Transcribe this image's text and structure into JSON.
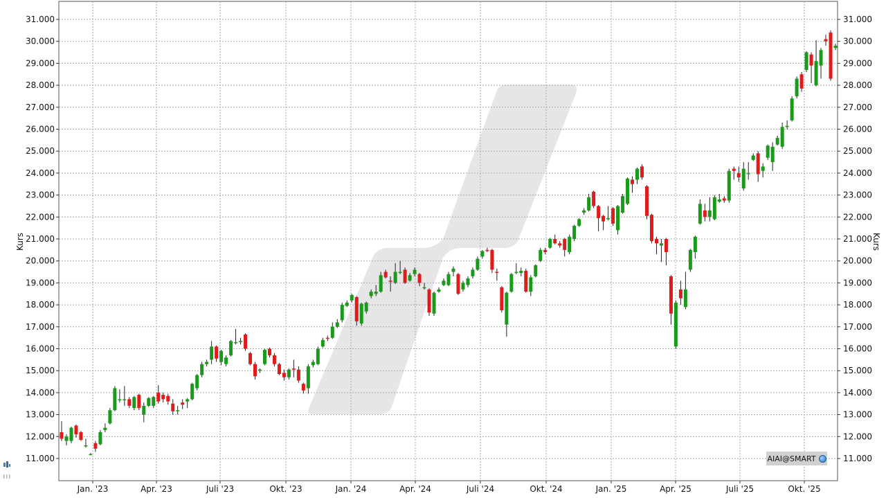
{
  "chart_data": {
    "type": "candlestick",
    "ylabel_left": "Kurs",
    "ylabel_right": "Kurs",
    "ylim": [
      10000,
      31500
    ],
    "y_ticks": [
      "11.000",
      "12.000",
      "13.000",
      "14.000",
      "15.000",
      "16.000",
      "17.000",
      "18.000",
      "19.000",
      "20.000",
      "21.000",
      "22.000",
      "23.000",
      "24.000",
      "25.000",
      "26.000",
      "27.000",
      "28.000",
      "29.000",
      "30.000",
      "31.000"
    ],
    "x_ticks": [
      "Jan. '23",
      "Apr. '23",
      "Juli '23",
      "Okt. '23",
      "Jan. '24",
      "Apr. '24",
      "Juli '24",
      "Okt. '24",
      "Jan. '25",
      "Apr. '25",
      "Juli '25",
      "Okt. '25"
    ],
    "grid": true,
    "candles": [
      {
        "o": 12200,
        "c": 11900,
        "h": 12700,
        "l": 11800
      },
      {
        "o": 11800,
        "c": 12000,
        "h": 12100,
        "l": 11600
      },
      {
        "o": 11800,
        "c": 12400,
        "h": 12450,
        "l": 11700
      },
      {
        "o": 12500,
        "c": 12100,
        "h": 12550,
        "l": 11950
      },
      {
        "o": 12200,
        "c": 11850,
        "h": 12250,
        "l": 11800
      },
      {
        "o": 11600,
        "c": 11600,
        "h": 11900,
        "l": 11500
      },
      {
        "o": 11200,
        "c": 11200,
        "h": 11250,
        "l": 11150
      },
      {
        "o": 11700,
        "c": 11450,
        "h": 11800,
        "l": 11300
      },
      {
        "o": 11650,
        "c": 12200,
        "h": 12300,
        "l": 11600
      },
      {
        "o": 12300,
        "c": 12400,
        "h": 12600,
        "l": 12200
      },
      {
        "o": 12600,
        "c": 13200,
        "h": 13300,
        "l": 12550
      },
      {
        "o": 13200,
        "c": 14200,
        "h": 14300,
        "l": 13150
      },
      {
        "o": 13700,
        "c": 13700,
        "h": 14150,
        "l": 13550
      },
      {
        "o": 13700,
        "c": 13700,
        "h": 14300,
        "l": 13400
      },
      {
        "o": 13700,
        "c": 13400,
        "h": 13800,
        "l": 13300
      },
      {
        "o": 13300,
        "c": 13800,
        "h": 13850,
        "l": 13200
      },
      {
        "o": 13900,
        "c": 13300,
        "h": 13950,
        "l": 13200
      },
      {
        "o": 13000,
        "c": 13400,
        "h": 13550,
        "l": 12650
      },
      {
        "o": 13400,
        "c": 13750,
        "h": 13800,
        "l": 13350
      },
      {
        "o": 13400,
        "c": 13800,
        "h": 13850,
        "l": 13300
      },
      {
        "o": 14000,
        "c": 13600,
        "h": 14350,
        "l": 13500
      },
      {
        "o": 13900,
        "c": 13700,
        "h": 14000,
        "l": 13550
      },
      {
        "o": 13850,
        "c": 13600,
        "h": 13950,
        "l": 13450
      },
      {
        "o": 13500,
        "c": 13150,
        "h": 13700,
        "l": 13000
      },
      {
        "o": 13200,
        "c": 13200,
        "h": 13400,
        "l": 13000
      },
      {
        "o": 13550,
        "c": 13450,
        "h": 13700,
        "l": 13250
      },
      {
        "o": 13600,
        "c": 13700,
        "h": 13750,
        "l": 13300
      },
      {
        "o": 13700,
        "c": 14400,
        "h": 14450,
        "l": 13650
      },
      {
        "o": 14200,
        "c": 14800,
        "h": 14850,
        "l": 14100
      },
      {
        "o": 14800,
        "c": 15300,
        "h": 15400,
        "l": 14700
      },
      {
        "o": 15300,
        "c": 15400,
        "h": 15500,
        "l": 15200
      },
      {
        "o": 15500,
        "c": 16100,
        "h": 16350,
        "l": 15300
      },
      {
        "o": 16100,
        "c": 15550,
        "h": 16150,
        "l": 15400
      },
      {
        "o": 15400,
        "c": 15900,
        "h": 15950,
        "l": 15250
      },
      {
        "o": 15300,
        "c": 15600,
        "h": 15700,
        "l": 15200
      },
      {
        "o": 15700,
        "c": 16350,
        "h": 16400,
        "l": 15650
      },
      {
        "o": 16300,
        "c": 16300,
        "h": 16900,
        "l": 16200
      },
      {
        "o": 16300,
        "c": 16350,
        "h": 16500,
        "l": 16200
      },
      {
        "o": 16650,
        "c": 16000,
        "h": 16700,
        "l": 15900
      },
      {
        "o": 15800,
        "c": 15300,
        "h": 15850,
        "l": 15250
      },
      {
        "o": 15300,
        "c": 14750,
        "h": 15400,
        "l": 14600
      },
      {
        "o": 15000,
        "c": 15050,
        "h": 15100,
        "l": 14900
      },
      {
        "o": 15300,
        "c": 15950,
        "h": 16000,
        "l": 15250
      },
      {
        "o": 16000,
        "c": 15700,
        "h": 16050,
        "l": 15600
      },
      {
        "o": 15700,
        "c": 15300,
        "h": 15800,
        "l": 15200
      },
      {
        "o": 15300,
        "c": 14850,
        "h": 15350,
        "l": 14800
      },
      {
        "o": 14900,
        "c": 14700,
        "h": 15050,
        "l": 14550
      },
      {
        "o": 14700,
        "c": 15050,
        "h": 15100,
        "l": 14600
      },
      {
        "o": 15100,
        "c": 15050,
        "h": 15500,
        "l": 14700
      },
      {
        "o": 15050,
        "c": 14550,
        "h": 15200,
        "l": 14450
      },
      {
        "o": 14400,
        "c": 14100,
        "h": 14450,
        "l": 13950
      },
      {
        "o": 14200,
        "c": 15200,
        "h": 15300,
        "l": 13950
      },
      {
        "o": 15250,
        "c": 15400,
        "h": 15500,
        "l": 15150
      },
      {
        "o": 15300,
        "c": 16000,
        "h": 16100,
        "l": 15250
      },
      {
        "o": 16100,
        "c": 16400,
        "h": 16500,
        "l": 16050
      },
      {
        "o": 16500,
        "c": 16450,
        "h": 16600,
        "l": 16350
      },
      {
        "o": 16500,
        "c": 17000,
        "h": 17200,
        "l": 16450
      },
      {
        "o": 17000,
        "c": 17200,
        "h": 17350,
        "l": 16950
      },
      {
        "o": 17300,
        "c": 18000,
        "h": 18100,
        "l": 17200
      },
      {
        "o": 17950,
        "c": 18100,
        "h": 18200,
        "l": 17900
      },
      {
        "o": 18200,
        "c": 18450,
        "h": 18500,
        "l": 18100
      },
      {
        "o": 18350,
        "c": 17250,
        "h": 18400,
        "l": 17050
      },
      {
        "o": 17150,
        "c": 18050,
        "h": 18100,
        "l": 17050
      },
      {
        "o": 17700,
        "c": 18100,
        "h": 18150,
        "l": 17600
      },
      {
        "o": 18400,
        "c": 18600,
        "h": 18700,
        "l": 18300
      },
      {
        "o": 18500,
        "c": 18600,
        "h": 18900,
        "l": 18400
      },
      {
        "o": 18600,
        "c": 19350,
        "h": 19500,
        "l": 18550
      },
      {
        "o": 19500,
        "c": 19250,
        "h": 19600,
        "l": 19200
      },
      {
        "o": 19100,
        "c": 19050,
        "h": 19300,
        "l": 18600
      },
      {
        "o": 19000,
        "c": 19500,
        "h": 19900,
        "l": 18950
      },
      {
        "o": 19500,
        "c": 19500,
        "h": 20000,
        "l": 19400
      },
      {
        "o": 19600,
        "c": 19000,
        "h": 19700,
        "l": 18950
      },
      {
        "o": 19100,
        "c": 19350,
        "h": 19450,
        "l": 19050
      },
      {
        "o": 19400,
        "c": 19600,
        "h": 19700,
        "l": 19300
      },
      {
        "o": 19400,
        "c": 19000,
        "h": 19450,
        "l": 18850
      },
      {
        "o": 18800,
        "c": 18800,
        "h": 19000,
        "l": 18700
      },
      {
        "o": 18700,
        "c": 17650,
        "h": 18750,
        "l": 17500
      },
      {
        "o": 17600,
        "c": 18550,
        "h": 18600,
        "l": 17500
      },
      {
        "o": 18600,
        "c": 18700,
        "h": 18800,
        "l": 18550
      },
      {
        "o": 18900,
        "c": 19100,
        "h": 19200,
        "l": 18850
      },
      {
        "o": 18900,
        "c": 19400,
        "h": 19500,
        "l": 18850
      },
      {
        "o": 19500,
        "c": 19650,
        "h": 19750,
        "l": 19300
      },
      {
        "o": 19400,
        "c": 18500,
        "h": 19450,
        "l": 18450
      },
      {
        "o": 18700,
        "c": 19000,
        "h": 19100,
        "l": 18600
      },
      {
        "o": 18900,
        "c": 19200,
        "h": 19300,
        "l": 18800
      },
      {
        "o": 19300,
        "c": 19600,
        "h": 19700,
        "l": 19200
      },
      {
        "o": 19600,
        "c": 20100,
        "h": 20200,
        "l": 19550
      },
      {
        "o": 20200,
        "c": 20450,
        "h": 20500,
        "l": 20100
      },
      {
        "o": 20500,
        "c": 20450,
        "h": 20600,
        "l": 20400
      },
      {
        "o": 20500,
        "c": 19600,
        "h": 20550,
        "l": 19450
      },
      {
        "o": 19500,
        "c": 19450,
        "h": 19650,
        "l": 19100
      },
      {
        "o": 18800,
        "c": 17750,
        "h": 18850,
        "l": 17650
      },
      {
        "o": 17100,
        "c": 18550,
        "h": 18600,
        "l": 16550
      },
      {
        "o": 18600,
        "c": 19400,
        "h": 19450,
        "l": 18550
      },
      {
        "o": 19450,
        "c": 19500,
        "h": 19900,
        "l": 19400
      },
      {
        "o": 19450,
        "c": 19550,
        "h": 19700,
        "l": 19300
      },
      {
        "o": 19550,
        "c": 18600,
        "h": 19650,
        "l": 18550
      },
      {
        "o": 18600,
        "c": 19250,
        "h": 19350,
        "l": 18400
      },
      {
        "o": 19300,
        "c": 19800,
        "h": 19850,
        "l": 19250
      },
      {
        "o": 20000,
        "c": 20500,
        "h": 20600,
        "l": 19950
      },
      {
        "o": 20500,
        "c": 20400,
        "h": 20600,
        "l": 20300
      },
      {
        "o": 20600,
        "c": 21000,
        "h": 21050,
        "l": 20550
      },
      {
        "o": 21000,
        "c": 20800,
        "h": 21200,
        "l": 20750
      },
      {
        "o": 20800,
        "c": 20700,
        "h": 20900,
        "l": 20600
      },
      {
        "o": 21000,
        "c": 20500,
        "h": 21050,
        "l": 20200
      },
      {
        "o": 20400,
        "c": 21100,
        "h": 21200,
        "l": 20300
      },
      {
        "o": 21000,
        "c": 21600,
        "h": 21650,
        "l": 20900
      },
      {
        "o": 21600,
        "c": 21900,
        "h": 21950,
        "l": 21550
      },
      {
        "o": 22200,
        "c": 22300,
        "h": 22400,
        "l": 22100
      },
      {
        "o": 22300,
        "c": 22900,
        "h": 23050,
        "l": 22250
      },
      {
        "o": 23150,
        "c": 22500,
        "h": 23200,
        "l": 22400
      },
      {
        "o": 22500,
        "c": 21950,
        "h": 22550,
        "l": 21350
      },
      {
        "o": 22050,
        "c": 21800,
        "h": 22100,
        "l": 21400
      },
      {
        "o": 21900,
        "c": 21950,
        "h": 22500,
        "l": 21850
      },
      {
        "o": 22400,
        "c": 21700,
        "h": 22450,
        "l": 21600
      },
      {
        "o": 21400,
        "c": 22500,
        "h": 22550,
        "l": 21200
      },
      {
        "o": 22200,
        "c": 22950,
        "h": 23050,
        "l": 22150
      },
      {
        "o": 22600,
        "c": 23750,
        "h": 23800,
        "l": 22550
      },
      {
        "o": 23700,
        "c": 23500,
        "h": 23850,
        "l": 23100
      },
      {
        "o": 23700,
        "c": 24200,
        "h": 24250,
        "l": 23500
      },
      {
        "o": 24300,
        "c": 23800,
        "h": 24400,
        "l": 23700
      },
      {
        "o": 23400,
        "c": 22050,
        "h": 23450,
        "l": 21900
      },
      {
        "o": 22100,
        "c": 20900,
        "h": 22150,
        "l": 20800
      },
      {
        "o": 21000,
        "c": 20800,
        "h": 21100,
        "l": 20300
      },
      {
        "o": 20700,
        "c": 20800,
        "h": 21000,
        "l": 19950
      },
      {
        "o": 21000,
        "c": 20400,
        "h": 21050,
        "l": 19800
      },
      {
        "o": 19300,
        "c": 17600,
        "h": 19350,
        "l": 17100
      },
      {
        "o": 16100,
        "c": 18100,
        "h": 18200,
        "l": 16000
      },
      {
        "o": 18700,
        "c": 18300,
        "h": 19100,
        "l": 18000
      },
      {
        "o": 17900,
        "c": 18700,
        "h": 19500,
        "l": 17800
      },
      {
        "o": 19600,
        "c": 20500,
        "h": 20550,
        "l": 19500
      },
      {
        "o": 20400,
        "c": 21100,
        "h": 21150,
        "l": 20100
      },
      {
        "o": 21700,
        "c": 22600,
        "h": 22800,
        "l": 21650
      },
      {
        "o": 22300,
        "c": 22000,
        "h": 22600,
        "l": 21800
      },
      {
        "o": 22000,
        "c": 22300,
        "h": 22900,
        "l": 21800
      },
      {
        "o": 21900,
        "c": 22900,
        "h": 23000,
        "l": 21850
      },
      {
        "o": 22700,
        "c": 22800,
        "h": 23050,
        "l": 22650
      },
      {
        "o": 22850,
        "c": 22750,
        "h": 22950,
        "l": 22650
      },
      {
        "o": 22750,
        "c": 24100,
        "h": 24200,
        "l": 22650
      },
      {
        "o": 24200,
        "c": 24100,
        "h": 24300,
        "l": 23700
      },
      {
        "o": 24000,
        "c": 23800,
        "h": 24300,
        "l": 23600
      },
      {
        "o": 23300,
        "c": 24200,
        "h": 24500,
        "l": 23200
      },
      {
        "o": 24000,
        "c": 24000,
        "h": 24500,
        "l": 23700
      },
      {
        "o": 24600,
        "c": 24800,
        "h": 24900,
        "l": 24550
      },
      {
        "o": 24900,
        "c": 23950,
        "h": 25000,
        "l": 23600
      },
      {
        "o": 24100,
        "c": 24300,
        "h": 24450,
        "l": 23800
      },
      {
        "o": 24700,
        "c": 25250,
        "h": 25300,
        "l": 24600
      },
      {
        "o": 24500,
        "c": 25200,
        "h": 25400,
        "l": 24100
      },
      {
        "o": 25300,
        "c": 25600,
        "h": 25700,
        "l": 25250
      },
      {
        "o": 25200,
        "c": 26100,
        "h": 26300,
        "l": 25100
      },
      {
        "o": 26100,
        "c": 26150,
        "h": 26400,
        "l": 26000
      },
      {
        "o": 26400,
        "c": 27400,
        "h": 27500,
        "l": 26350
      },
      {
        "o": 27500,
        "c": 28300,
        "h": 28400,
        "l": 27400
      },
      {
        "o": 28500,
        "c": 27850,
        "h": 28600,
        "l": 27700
      },
      {
        "o": 28700,
        "c": 29500,
        "h": 29550,
        "l": 28600
      },
      {
        "o": 29400,
        "c": 28900,
        "h": 29500,
        "l": 28100
      },
      {
        "o": 28000,
        "c": 29100,
        "h": 30050,
        "l": 27950
      },
      {
        "o": 28900,
        "c": 29600,
        "h": 29700,
        "l": 28300
      },
      {
        "o": 30100,
        "c": 30000,
        "h": 30300,
        "l": 29800
      },
      {
        "o": 30400,
        "c": 28300,
        "h": 30500,
        "l": 28200
      },
      {
        "o": 29700,
        "c": 29800,
        "h": 29900,
        "l": 29600
      }
    ],
    "source_label": "AIAI@SMART",
    "colors": {
      "up": "#1a9a1a",
      "down": "#e01b1b",
      "grid": "#aaaaaa",
      "watermark": "#e6e6e6"
    }
  },
  "icons": {
    "globe": "globe-icon",
    "control": "chart-control-icon"
  }
}
